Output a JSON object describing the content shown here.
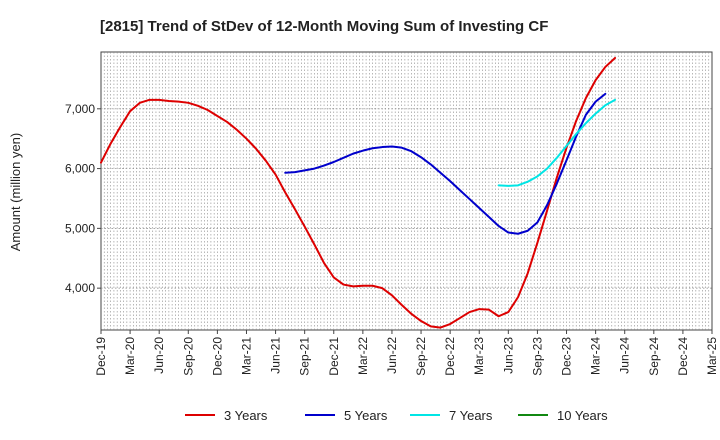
{
  "chart_data": {
    "type": "line",
    "title": "[2815]  Trend of StDev of 12-Month Moving Sum of Investing CF",
    "xlabel": "",
    "ylabel": "Amount (million yen)",
    "x_ticks": [
      "Dec-19",
      "Mar-20",
      "Jun-20",
      "Sep-20",
      "Dec-20",
      "Mar-21",
      "Jun-21",
      "Sep-21",
      "Dec-21",
      "Mar-22",
      "Jun-22",
      "Sep-22",
      "Dec-22",
      "Mar-23",
      "Jun-23",
      "Sep-23",
      "Dec-23",
      "Mar-24",
      "Jun-24",
      "Sep-24",
      "Dec-24",
      "Mar-25"
    ],
    "y_ticks": [
      4000,
      5000,
      6000,
      7000
    ],
    "y_tick_labels": [
      "4,000",
      "5,000",
      "6,000",
      "7,000"
    ],
    "ylim": [
      3300,
      7950
    ],
    "grid": true,
    "legend_position": "bottom",
    "series": [
      {
        "name": "3 Years",
        "color": "#dd0000",
        "start_index": 0,
        "values": [
          6100,
          6420,
          6700,
          6960,
          7100,
          7150,
          7150,
          7130,
          7120,
          7100,
          7050,
          6980,
          6880,
          6780,
          6650,
          6500,
          6330,
          6130,
          5900,
          5600,
          5320,
          5030,
          4730,
          4420,
          4180,
          4060,
          4030,
          4040,
          4040,
          4000,
          3880,
          3720,
          3570,
          3450,
          3360,
          3340,
          3400,
          3500,
          3600,
          3650,
          3640,
          3530,
          3600,
          3850,
          4250,
          4760,
          5300,
          5850,
          6350,
          6800,
          7180,
          7480,
          7700,
          7850
        ]
      },
      {
        "name": "5 Years",
        "color": "#0000cc",
        "start_index": 19,
        "values": [
          5930,
          5940,
          5970,
          6000,
          6050,
          6110,
          6180,
          6250,
          6300,
          6340,
          6360,
          6370,
          6350,
          6290,
          6190,
          6070,
          5930,
          5790,
          5640,
          5490,
          5340,
          5190,
          5040,
          4930,
          4910,
          4960,
          5100,
          5390,
          5750,
          6140,
          6540,
          6900,
          7120,
          7250
        ]
      },
      {
        "name": "7 Years",
        "color": "#00e5e5",
        "start_index": 41,
        "values": [
          5720,
          5710,
          5720,
          5780,
          5870,
          6000,
          6180,
          6380,
          6580,
          6760,
          6920,
          7060,
          7150
        ]
      },
      {
        "name": "10 Years",
        "color": "#118811",
        "start_index": 0,
        "values": []
      }
    ]
  }
}
